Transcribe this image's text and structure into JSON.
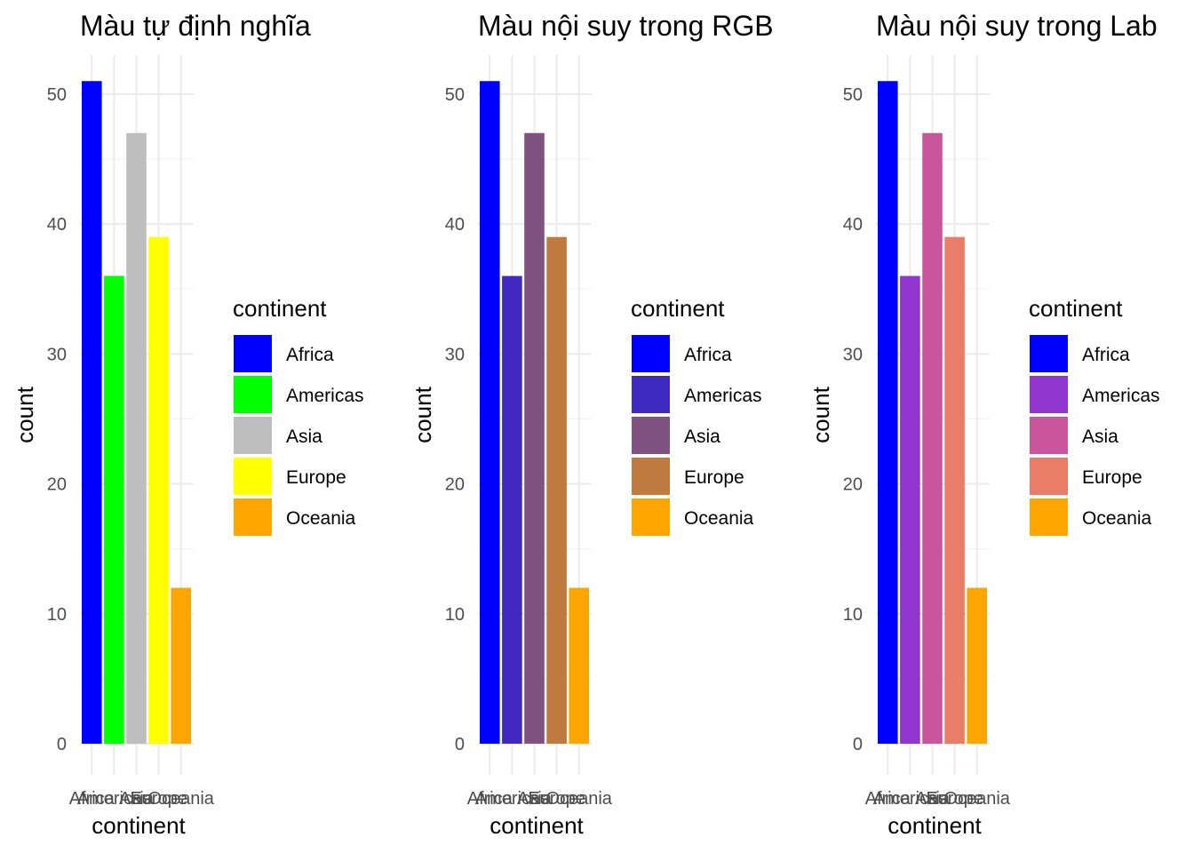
{
  "chart_data": [
    {
      "type": "bar",
      "title": "Màu tự định nghĩa",
      "xlabel": "continent",
      "ylabel": "count",
      "categories": [
        "Africa",
        "Americas",
        "Asia",
        "Europe",
        "Oceania"
      ],
      "values": [
        51,
        36,
        47,
        39,
        12
      ],
      "colors": [
        "#0000FF",
        "#00FF00",
        "#BEBEBE",
        "#FFFF00",
        "#FFA500"
      ],
      "ylim": [
        0,
        53
      ],
      "yticks": [
        0,
        10,
        20,
        30,
        40,
        50
      ],
      "grid": true,
      "legend": {
        "title": "continent",
        "position": "right"
      }
    },
    {
      "type": "bar",
      "title": "Màu nội suy trong RGB",
      "xlabel": "continent",
      "ylabel": "count",
      "categories": [
        "Africa",
        "Americas",
        "Asia",
        "Europe",
        "Oceania"
      ],
      "values": [
        51,
        36,
        47,
        39,
        12
      ],
      "colors": [
        "#0000FF",
        "#3F29BF",
        "#7F527F",
        "#BF7B3F",
        "#FFA500"
      ],
      "ylim": [
        0,
        53
      ],
      "yticks": [
        0,
        10,
        20,
        30,
        40,
        50
      ],
      "grid": true,
      "legend": {
        "title": "continent",
        "position": "right"
      }
    },
    {
      "type": "bar",
      "title": "Màu nội suy trong Lab",
      "xlabel": "continent",
      "ylabel": "count",
      "categories": [
        "Africa",
        "Americas",
        "Asia",
        "Europe",
        "Oceania"
      ],
      "values": [
        51,
        36,
        47,
        39,
        12
      ],
      "colors": [
        "#0000FF",
        "#9035CE",
        "#C9569A",
        "#E97D68",
        "#FFA500"
      ],
      "ylim": [
        0,
        53
      ],
      "yticks": [
        0,
        10,
        20,
        30,
        40,
        50
      ],
      "grid": true,
      "legend": {
        "title": "continent",
        "position": "right"
      }
    }
  ]
}
